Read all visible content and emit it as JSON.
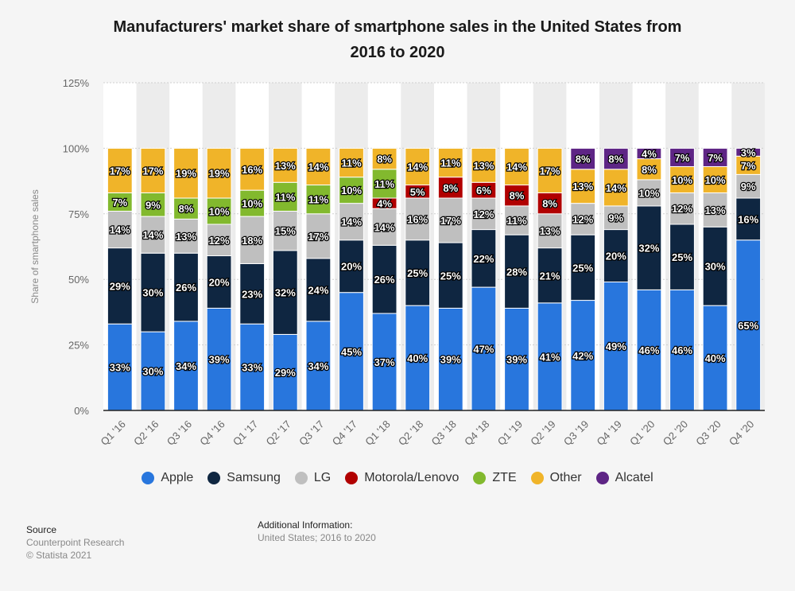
{
  "chart_data": {
    "type": "bar",
    "stacked": true,
    "title": "Manufacturers' market share of smartphone sales in the United States from 2016 to 2020",
    "title_lines": [
      "Manufacturers' market share of smartphone sales in the United States from",
      "2016 to 2020"
    ],
    "xlabel": "",
    "ylabel": "Share of smartphone sales",
    "ylim": [
      0,
      125
    ],
    "yticks": [
      "0%",
      "25%",
      "50%",
      "75%",
      "100%",
      "125%"
    ],
    "ytick_values": [
      0,
      25,
      50,
      75,
      100,
      125
    ],
    "grid": true,
    "legend_position": "bottom",
    "categories": [
      "Q1 '16",
      "Q2 '16",
      "Q3 '16",
      "Q4 '16",
      "Q1 '17",
      "Q2 '17",
      "Q3 '17",
      "Q4 '17",
      "Q1 '18",
      "Q2 '18",
      "Q3 '18",
      "Q4 '18",
      "Q1 '19",
      "Q2 '19",
      "Q3 '19",
      "Q4 '19",
      "Q1 '20",
      "Q2 '20",
      "Q3 '20",
      "Q4 '20"
    ],
    "series": [
      {
        "name": "Apple",
        "color": "#2876dd",
        "values": [
          33,
          30,
          34,
          39,
          33,
          29,
          34,
          45,
          37,
          40,
          39,
          47,
          39,
          41,
          42,
          49,
          46,
          46,
          40,
          65
        ]
      },
      {
        "name": "Samsung",
        "color": "#0f2641",
        "values": [
          29,
          30,
          26,
          20,
          23,
          32,
          24,
          20,
          26,
          25,
          25,
          22,
          28,
          21,
          25,
          20,
          32,
          25,
          30,
          16
        ]
      },
      {
        "name": "LG",
        "color": "#bfbfbf",
        "values": [
          14,
          14,
          13,
          12,
          18,
          15,
          17,
          14,
          14,
          16,
          17,
          12,
          11,
          13,
          12,
          9,
          10,
          12,
          13,
          9
        ]
      },
      {
        "name": "Motorola/Lenovo",
        "color": "#b10000",
        "values": [
          null,
          null,
          null,
          null,
          null,
          null,
          null,
          null,
          4,
          5,
          8,
          6,
          8,
          8,
          null,
          null,
          null,
          null,
          null,
          null
        ]
      },
      {
        "name": "ZTE",
        "color": "#82b92e",
        "values": [
          7,
          9,
          8,
          10,
          10,
          11,
          11,
          10,
          11,
          null,
          null,
          null,
          null,
          null,
          null,
          null,
          null,
          null,
          null,
          null
        ]
      },
      {
        "name": "Other",
        "color": "#f0b429",
        "values": [
          17,
          17,
          19,
          19,
          16,
          13,
          14,
          11,
          8,
          14,
          11,
          13,
          14,
          17,
          13,
          14,
          8,
          10,
          10,
          7
        ]
      },
      {
        "name": "Alcatel",
        "color": "#5e2585",
        "values": [
          null,
          null,
          null,
          null,
          null,
          null,
          null,
          null,
          null,
          null,
          null,
          null,
          null,
          null,
          8,
          8,
          4,
          7,
          7,
          3
        ]
      }
    ],
    "value_suffix": "%"
  },
  "footer": {
    "source_heading": "Source",
    "source_name": "Counterpoint Research",
    "copyright": "© Statista 2021",
    "info_heading": "Additional Information:",
    "info_text": "United States; 2016 to 2020"
  }
}
